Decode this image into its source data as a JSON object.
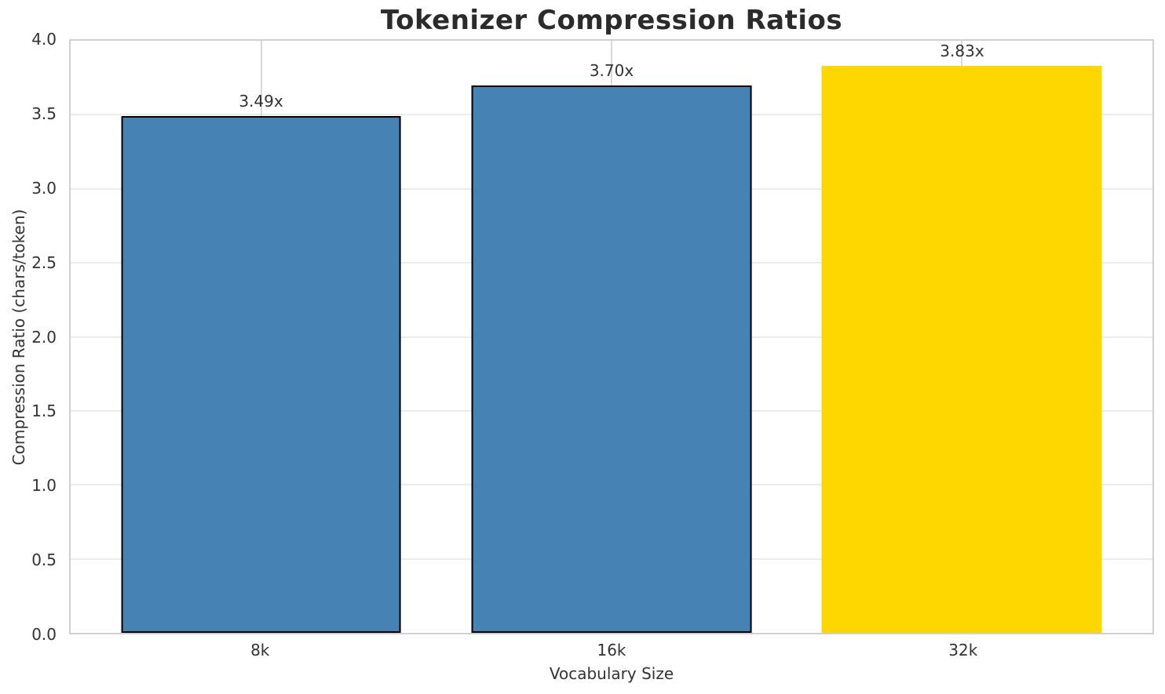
{
  "chart_data": {
    "type": "bar",
    "title": "Tokenizer Compression Ratios",
    "xlabel": "Vocabulary Size",
    "ylabel": "Compression Ratio (chars/token)",
    "categories": [
      "8k",
      "16k",
      "32k"
    ],
    "values": [
      3.49,
      3.7,
      3.83
    ],
    "value_labels": [
      "3.49x",
      "3.70x",
      "3.83x"
    ],
    "bar_colors": [
      "#4682B4",
      "#4682B4",
      "#FFD700"
    ],
    "bar_edge_colors": [
      "#000000",
      "#000000",
      "none"
    ],
    "ylim": [
      0,
      4.0
    ],
    "ytick_labels": [
      "0.0",
      "0.5",
      "1.0",
      "1.5",
      "2.0",
      "2.5",
      "3.0",
      "3.5",
      "4.0"
    ],
    "grid": "horizontal and vertical light gridlines, white background",
    "legend": "none"
  }
}
